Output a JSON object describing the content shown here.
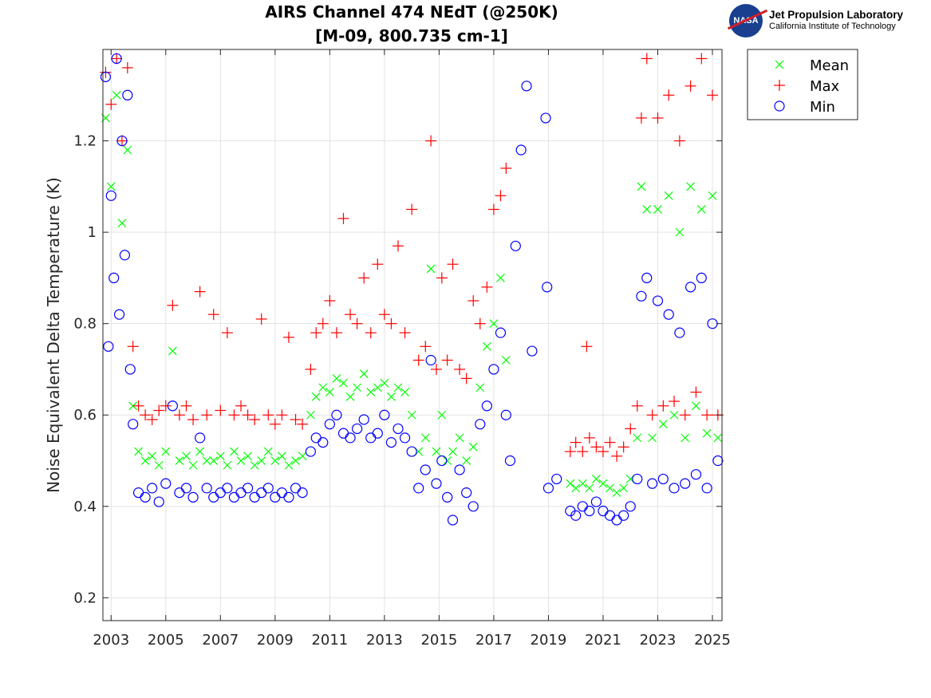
{
  "chart_data": {
    "type": "scatter",
    "title": "AIRS Channel 474 NEdT (@250K)",
    "subtitle": "[M-09, 800.735 cm-1]",
    "xlabel": "",
    "ylabel": "Noise Equivalent Delta Temperature (K)",
    "xlim": [
      2002.7,
      2025.35
    ],
    "ylim": [
      0.15,
      1.4
    ],
    "xticks": [
      2003,
      2005,
      2007,
      2009,
      2011,
      2013,
      2015,
      2017,
      2019,
      2021,
      2023,
      2025
    ],
    "xtick_labels": [
      "2003",
      "2005",
      "2007",
      "2009",
      "2011",
      "2013",
      "2015",
      "2017",
      "2019",
      "2021",
      "2023",
      "2025"
    ],
    "yticks": [
      0.2,
      0.4,
      0.6,
      0.8,
      1.0,
      1.2
    ],
    "ytick_labels": [
      "0.2",
      "0.4",
      "0.6",
      "0.8",
      "1",
      "1.2"
    ],
    "grid": true,
    "legend_position": "outside-top-right",
    "series": [
      {
        "name": "Mean",
        "color": "#00ff00",
        "marker": "x",
        "points": [
          [
            2002.8,
            1.25
          ],
          [
            2003.0,
            1.1
          ],
          [
            2003.2,
            1.3
          ],
          [
            2003.4,
            1.02
          ],
          [
            2003.6,
            1.18
          ],
          [
            2003.8,
            0.62
          ],
          [
            2004.0,
            0.52
          ],
          [
            2004.25,
            0.5
          ],
          [
            2004.5,
            0.51
          ],
          [
            2004.75,
            0.49
          ],
          [
            2005.0,
            0.52
          ],
          [
            2005.25,
            0.74
          ],
          [
            2005.5,
            0.5
          ],
          [
            2005.75,
            0.51
          ],
          [
            2006.0,
            0.49
          ],
          [
            2006.25,
            0.52
          ],
          [
            2006.5,
            0.5
          ],
          [
            2006.75,
            0.5
          ],
          [
            2007.0,
            0.51
          ],
          [
            2007.25,
            0.49
          ],
          [
            2007.5,
            0.52
          ],
          [
            2007.75,
            0.5
          ],
          [
            2008.0,
            0.51
          ],
          [
            2008.25,
            0.49
          ],
          [
            2008.5,
            0.5
          ],
          [
            2008.75,
            0.52
          ],
          [
            2009.0,
            0.5
          ],
          [
            2009.25,
            0.51
          ],
          [
            2009.5,
            0.49
          ],
          [
            2009.75,
            0.5
          ],
          [
            2010.0,
            0.51
          ],
          [
            2010.3,
            0.6
          ],
          [
            2010.5,
            0.64
          ],
          [
            2010.75,
            0.66
          ],
          [
            2011.0,
            0.65
          ],
          [
            2011.25,
            0.68
          ],
          [
            2011.5,
            0.67
          ],
          [
            2011.75,
            0.64
          ],
          [
            2012.0,
            0.66
          ],
          [
            2012.25,
            0.69
          ],
          [
            2012.5,
            0.65
          ],
          [
            2012.75,
            0.66
          ],
          [
            2013.0,
            0.67
          ],
          [
            2013.25,
            0.64
          ],
          [
            2013.5,
            0.66
          ],
          [
            2013.75,
            0.65
          ],
          [
            2014.0,
            0.6
          ],
          [
            2014.25,
            0.52
          ],
          [
            2014.5,
            0.55
          ],
          [
            2014.7,
            0.92
          ],
          [
            2014.9,
            0.52
          ],
          [
            2015.1,
            0.6
          ],
          [
            2015.3,
            0.5
          ],
          [
            2015.5,
            0.52
          ],
          [
            2015.75,
            0.55
          ],
          [
            2016.0,
            0.5
          ],
          [
            2016.25,
            0.53
          ],
          [
            2016.5,
            0.66
          ],
          [
            2016.75,
            0.75
          ],
          [
            2017.0,
            0.8
          ],
          [
            2017.25,
            0.9
          ],
          [
            2017.45,
            0.72
          ],
          [
            2019.8,
            0.45
          ],
          [
            2020.0,
            0.44
          ],
          [
            2020.25,
            0.45
          ],
          [
            2020.5,
            0.44
          ],
          [
            2020.75,
            0.46
          ],
          [
            2021.0,
            0.45
          ],
          [
            2021.25,
            0.44
          ],
          [
            2021.5,
            0.43
          ],
          [
            2021.75,
            0.44
          ],
          [
            2022.0,
            0.46
          ],
          [
            2022.25,
            0.55
          ],
          [
            2022.4,
            1.1
          ],
          [
            2022.6,
            1.05
          ],
          [
            2022.8,
            0.55
          ],
          [
            2023.0,
            1.05
          ],
          [
            2023.2,
            0.58
          ],
          [
            2023.4,
            1.08
          ],
          [
            2023.6,
            0.6
          ],
          [
            2023.8,
            1.0
          ],
          [
            2024.0,
            0.55
          ],
          [
            2024.2,
            1.1
          ],
          [
            2024.4,
            0.62
          ],
          [
            2024.6,
            1.05
          ],
          [
            2024.8,
            0.56
          ],
          [
            2025.0,
            1.08
          ],
          [
            2025.2,
            0.55
          ]
        ]
      },
      {
        "name": "Max",
        "color": "#ff0000",
        "marker": "+",
        "points": [
          [
            2002.8,
            1.35
          ],
          [
            2003.0,
            1.28
          ],
          [
            2003.2,
            1.38
          ],
          [
            2003.4,
            1.2
          ],
          [
            2003.6,
            1.36
          ],
          [
            2003.8,
            0.75
          ],
          [
            2004.0,
            0.62
          ],
          [
            2004.25,
            0.6
          ],
          [
            2004.5,
            0.59
          ],
          [
            2004.75,
            0.61
          ],
          [
            2005.0,
            0.62
          ],
          [
            2005.25,
            0.84
          ],
          [
            2005.5,
            0.6
          ],
          [
            2005.75,
            0.62
          ],
          [
            2006.0,
            0.59
          ],
          [
            2006.25,
            0.87
          ],
          [
            2006.5,
            0.6
          ],
          [
            2006.75,
            0.82
          ],
          [
            2007.0,
            0.61
          ],
          [
            2007.25,
            0.78
          ],
          [
            2007.5,
            0.6
          ],
          [
            2007.75,
            0.62
          ],
          [
            2008.0,
            0.6
          ],
          [
            2008.25,
            0.59
          ],
          [
            2008.5,
            0.81
          ],
          [
            2008.75,
            0.6
          ],
          [
            2009.0,
            0.58
          ],
          [
            2009.25,
            0.6
          ],
          [
            2009.5,
            0.77
          ],
          [
            2009.75,
            0.59
          ],
          [
            2010.0,
            0.58
          ],
          [
            2010.3,
            0.7
          ],
          [
            2010.5,
            0.78
          ],
          [
            2010.75,
            0.8
          ],
          [
            2011.0,
            0.85
          ],
          [
            2011.25,
            0.78
          ],
          [
            2011.5,
            1.03
          ],
          [
            2011.75,
            0.82
          ],
          [
            2012.0,
            0.8
          ],
          [
            2012.25,
            0.9
          ],
          [
            2012.5,
            0.78
          ],
          [
            2012.75,
            0.93
          ],
          [
            2013.0,
            0.82
          ],
          [
            2013.25,
            0.8
          ],
          [
            2013.5,
            0.97
          ],
          [
            2013.75,
            0.78
          ],
          [
            2014.0,
            1.05
          ],
          [
            2014.25,
            0.72
          ],
          [
            2014.5,
            0.75
          ],
          [
            2014.7,
            1.2
          ],
          [
            2014.9,
            0.7
          ],
          [
            2015.1,
            0.9
          ],
          [
            2015.3,
            0.72
          ],
          [
            2015.5,
            0.93
          ],
          [
            2015.75,
            0.7
          ],
          [
            2016.0,
            0.68
          ],
          [
            2016.25,
            0.85
          ],
          [
            2016.5,
            0.8
          ],
          [
            2016.75,
            0.88
          ],
          [
            2017.0,
            1.05
          ],
          [
            2017.25,
            1.08
          ],
          [
            2017.45,
            1.14
          ],
          [
            2019.8,
            0.52
          ],
          [
            2020.0,
            0.54
          ],
          [
            2020.25,
            0.52
          ],
          [
            2020.4,
            0.75
          ],
          [
            2020.5,
            0.55
          ],
          [
            2020.75,
            0.53
          ],
          [
            2021.0,
            0.52
          ],
          [
            2021.25,
            0.54
          ],
          [
            2021.5,
            0.51
          ],
          [
            2021.75,
            0.53
          ],
          [
            2022.0,
            0.57
          ],
          [
            2022.25,
            0.62
          ],
          [
            2022.4,
            1.25
          ],
          [
            2022.6,
            1.38
          ],
          [
            2022.8,
            0.6
          ],
          [
            2023.0,
            1.25
          ],
          [
            2023.2,
            0.62
          ],
          [
            2023.4,
            1.3
          ],
          [
            2023.6,
            0.63
          ],
          [
            2023.8,
            1.2
          ],
          [
            2024.0,
            0.6
          ],
          [
            2024.2,
            1.32
          ],
          [
            2024.4,
            0.65
          ],
          [
            2024.6,
            1.38
          ],
          [
            2024.8,
            0.6
          ],
          [
            2025.0,
            1.3
          ],
          [
            2025.2,
            0.6
          ]
        ]
      },
      {
        "name": "Min",
        "color": "#0000ff",
        "marker": "o",
        "points": [
          [
            2002.8,
            1.34
          ],
          [
            2002.9,
            0.75
          ],
          [
            2003.0,
            1.08
          ],
          [
            2003.1,
            0.9
          ],
          [
            2003.2,
            1.38
          ],
          [
            2003.3,
            0.82
          ],
          [
            2003.4,
            1.2
          ],
          [
            2003.5,
            0.95
          ],
          [
            2003.6,
            1.3
          ],
          [
            2003.7,
            0.7
          ],
          [
            2003.8,
            0.58
          ],
          [
            2004.0,
            0.43
          ],
          [
            2004.25,
            0.42
          ],
          [
            2004.5,
            0.44
          ],
          [
            2004.75,
            0.41
          ],
          [
            2005.0,
            0.45
          ],
          [
            2005.25,
            0.62
          ],
          [
            2005.5,
            0.43
          ],
          [
            2005.75,
            0.44
          ],
          [
            2006.0,
            0.42
          ],
          [
            2006.25,
            0.55
          ],
          [
            2006.5,
            0.44
          ],
          [
            2006.75,
            0.42
          ],
          [
            2007.0,
            0.43
          ],
          [
            2007.25,
            0.44
          ],
          [
            2007.5,
            0.42
          ],
          [
            2007.75,
            0.43
          ],
          [
            2008.0,
            0.44
          ],
          [
            2008.25,
            0.42
          ],
          [
            2008.5,
            0.43
          ],
          [
            2008.75,
            0.44
          ],
          [
            2009.0,
            0.42
          ],
          [
            2009.25,
            0.43
          ],
          [
            2009.5,
            0.42
          ],
          [
            2009.75,
            0.44
          ],
          [
            2010.0,
            0.43
          ],
          [
            2010.3,
            0.52
          ],
          [
            2010.5,
            0.55
          ],
          [
            2010.75,
            0.54
          ],
          [
            2011.0,
            0.58
          ],
          [
            2011.25,
            0.6
          ],
          [
            2011.5,
            0.56
          ],
          [
            2011.75,
            0.55
          ],
          [
            2012.0,
            0.57
          ],
          [
            2012.25,
            0.59
          ],
          [
            2012.5,
            0.55
          ],
          [
            2012.75,
            0.56
          ],
          [
            2013.0,
            0.6
          ],
          [
            2013.25,
            0.54
          ],
          [
            2013.5,
            0.57
          ],
          [
            2013.75,
            0.55
          ],
          [
            2014.0,
            0.52
          ],
          [
            2014.25,
            0.44
          ],
          [
            2014.5,
            0.48
          ],
          [
            2014.7,
            0.72
          ],
          [
            2014.9,
            0.45
          ],
          [
            2015.1,
            0.5
          ],
          [
            2015.3,
            0.42
          ],
          [
            2015.5,
            0.37
          ],
          [
            2015.75,
            0.48
          ],
          [
            2016.0,
            0.43
          ],
          [
            2016.25,
            0.4
          ],
          [
            2016.5,
            0.58
          ],
          [
            2016.75,
            0.62
          ],
          [
            2017.0,
            0.7
          ],
          [
            2017.25,
            0.78
          ],
          [
            2017.45,
            0.6
          ],
          [
            2017.6,
            0.5
          ],
          [
            2017.8,
            0.97
          ],
          [
            2018.0,
            1.18
          ],
          [
            2018.2,
            1.32
          ],
          [
            2018.4,
            0.74
          ],
          [
            2018.9,
            1.25
          ],
          [
            2018.95,
            0.88
          ],
          [
            2019.0,
            0.44
          ],
          [
            2019.3,
            0.46
          ],
          [
            2019.8,
            0.39
          ],
          [
            2020.0,
            0.38
          ],
          [
            2020.25,
            0.4
          ],
          [
            2020.5,
            0.39
          ],
          [
            2020.75,
            0.41
          ],
          [
            2021.0,
            0.39
          ],
          [
            2021.25,
            0.38
          ],
          [
            2021.5,
            0.37
          ],
          [
            2021.75,
            0.38
          ],
          [
            2022.0,
            0.4
          ],
          [
            2022.25,
            0.46
          ],
          [
            2022.4,
            0.86
          ],
          [
            2022.6,
            0.9
          ],
          [
            2022.8,
            0.45
          ],
          [
            2023.0,
            0.85
          ],
          [
            2023.2,
            0.46
          ],
          [
            2023.4,
            0.82
          ],
          [
            2023.6,
            0.44
          ],
          [
            2023.8,
            0.78
          ],
          [
            2024.0,
            0.45
          ],
          [
            2024.2,
            0.88
          ],
          [
            2024.4,
            0.47
          ],
          [
            2024.6,
            0.9
          ],
          [
            2024.8,
            0.44
          ],
          [
            2025.0,
            0.8
          ],
          [
            2025.2,
            0.5
          ]
        ]
      }
    ]
  },
  "logo": {
    "org": "Jet Propulsion Laboratory",
    "sub": "California Institute of Technology",
    "badge": "NASA"
  }
}
